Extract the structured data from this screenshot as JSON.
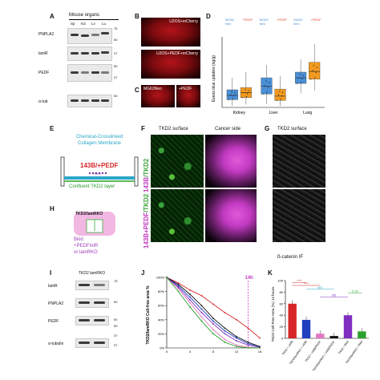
{
  "panelA": {
    "label": "A",
    "header": "Mouse organs",
    "lanes": [
      "Sp",
      "Kd",
      "Lv",
      "Lu"
    ],
    "rows": [
      {
        "name": "PNPLA2",
        "markers": [
          "75",
          "50"
        ]
      },
      {
        "name": "lamR",
        "markers": [
          "37"
        ]
      },
      {
        "name": "PEDF",
        "markers": [
          "50",
          "37"
        ]
      },
      {
        "name": "α-tub",
        "markers": [
          "50"
        ]
      }
    ]
  },
  "panelB": {
    "label": "B",
    "image1": "U2OS+mCherry",
    "image2": "U2OS+PEDF+mCherry"
  },
  "panelC": {
    "label": "C",
    "image1": "MG63Neo",
    "image2": "+PEDF"
  },
  "panelD": {
    "label": "D",
    "ylabel": "Evans blue uptakes (ng/g)",
    "groups": [
      {
        "name": "Kidney",
        "boxes": [
          {
            "legend": "MG63 Neo",
            "color": "#4a90d9",
            "q1": 1.1,
            "median": 1.7,
            "q3": 2.5,
            "min": 0.2,
            "max": 4.2
          },
          {
            "legend": "+PEDF",
            "color": "#f39a1e",
            "q1": 1.4,
            "median": 2.1,
            "q3": 2.8,
            "min": 0.4,
            "max": 5.0
          }
        ]
      },
      {
        "name": "Liver",
        "boxes": [
          {
            "legend": "MG63 Neo",
            "color": "#4a90d9",
            "q1": 1.9,
            "median": 3.0,
            "q3": 4.2,
            "min": 0.5,
            "max": 6.0
          },
          {
            "legend": "+PEDF",
            "color": "#f39a1e",
            "q1": 1.0,
            "median": 1.6,
            "q3": 2.6,
            "min": 0.2,
            "max": 4.4
          }
        ]
      },
      {
        "name": "Lung",
        "boxes": [
          {
            "legend": "MG63 Neo",
            "color": "#4a90d9",
            "q1": 3.4,
            "median": 4.2,
            "q3": 5.0,
            "min": 2.0,
            "max": 6.8
          },
          {
            "legend": "+PEDF",
            "color": "#f39a1e",
            "q1": 4.0,
            "median": 5.1,
            "q3": 6.4,
            "min": 2.4,
            "max": 9.0
          }
        ]
      }
    ],
    "legend_top": [
      {
        "text": "MG63\nNeo",
        "color": "#4a90d9"
      },
      {
        "text": "+PEDF",
        "color": "#e2452b"
      },
      {
        "text": "MG63\nNeo",
        "color": "#4a90d9"
      },
      {
        "text": "+PEDF",
        "color": "#e2452b"
      },
      {
        "text": "MG63\nNeo",
        "color": "#4a90d9"
      },
      {
        "text": "+PEDF",
        "color": "#e2452b"
      }
    ]
  },
  "panelE": {
    "label": "E",
    "title_line1": "Chemical-Crosslinked",
    "title_line2": "Collagen Membrane",
    "cells": "143B/+PEDF",
    "pedf": "PEDF",
    "bottom": "Confluent TKD2 layer"
  },
  "panelF": {
    "label": "F",
    "col1": "TKD2 surface",
    "col2": "Cancer side",
    "row1_label_a": "143B",
    "row1_label_b": "/TKD2",
    "row2_label_a": "143B+PEDF",
    "row2_label_b": "/TKD2"
  },
  "panelG": {
    "label": "G",
    "title": "TKD2 surface",
    "caption": "ß-catenin IF"
  },
  "panelH": {
    "label": "H",
    "top": "TKD2/lamRKO",
    "line1": "Bkid",
    "line2": "+PEDFmiR",
    "line3": "or lamRKO"
  },
  "panelI": {
    "label": "I",
    "header": "TKD2 lamRKO",
    "rows": [
      {
        "name": "lamR",
        "marker": "75"
      },
      {
        "name": "PNPLA2",
        "marker": "50"
      },
      {
        "name": "PEDF",
        "marker": "50"
      },
      {
        "name": "α-tubulin",
        "marker": "37"
      }
    ],
    "extra_markers": [
      "50",
      "37"
    ]
  },
  "panelJ": {
    "label": "J",
    "ylabel": "TKD2/lamRKO Cell-free area %",
    "ytick_labels": [
      "0%",
      "20%",
      "40%",
      "60%",
      "80%",
      "100%"
    ],
    "xtick_labels": [
      "0",
      "4",
      "8",
      "12",
      "16"
    ],
    "marker_label": "14h",
    "chart_data": {
      "type": "line",
      "x": [
        0,
        2,
        4,
        6,
        8,
        10,
        12,
        14,
        16
      ],
      "xlim": [
        0,
        16
      ],
      "ylim": [
        0,
        100
      ],
      "series": [
        {
          "color": "#d62728",
          "values": [
            100,
            92,
            82,
            74,
            62,
            50,
            40,
            28,
            14
          ]
        },
        {
          "color": "#1f3fbf",
          "values": [
            100,
            88,
            72,
            55,
            38,
            24,
            14,
            6,
            2
          ]
        },
        {
          "color": "#e377c2",
          "values": [
            100,
            84,
            64,
            44,
            26,
            12,
            4,
            1,
            0
          ]
        },
        {
          "color": "#111111",
          "values": [
            100,
            90,
            76,
            60,
            42,
            28,
            16,
            8,
            2
          ]
        },
        {
          "color": "#7f2fbf",
          "values": [
            100,
            86,
            68,
            50,
            34,
            20,
            10,
            4,
            1
          ]
        },
        {
          "color": "#2ca02c",
          "values": [
            100,
            80,
            58,
            38,
            20,
            8,
            2,
            0,
            0
          ]
        }
      ]
    }
  },
  "panelK": {
    "label": "K",
    "ylabel": "TKD2 Cell-Free Area (%) 14 hours",
    "ytick_labels": [
      "0",
      "20",
      "40",
      "60",
      "80",
      "100"
    ],
    "sig_labels": [
      "****",
      "****",
      "NS",
      "0.18",
      "NS"
    ],
    "chart_data": {
      "type": "bar",
      "categories": [
        "TKD2 + 143B",
        "TKD2/lamRKO + 143B",
        "TKD2 + 143B/PEDF",
        "TKD2/lamRKO + 143B/PEDF",
        "TKD2 + Bkid",
        "TKD2/lamRKO + Bkid"
      ],
      "values": [
        60,
        32,
        8,
        4,
        40,
        12
      ],
      "colors": [
        "#d62728",
        "#1f3fbf",
        "#e377c2",
        "#111111",
        "#7f2fbf",
        "#2ca02c"
      ],
      "ylim": [
        0,
        100
      ]
    }
  }
}
